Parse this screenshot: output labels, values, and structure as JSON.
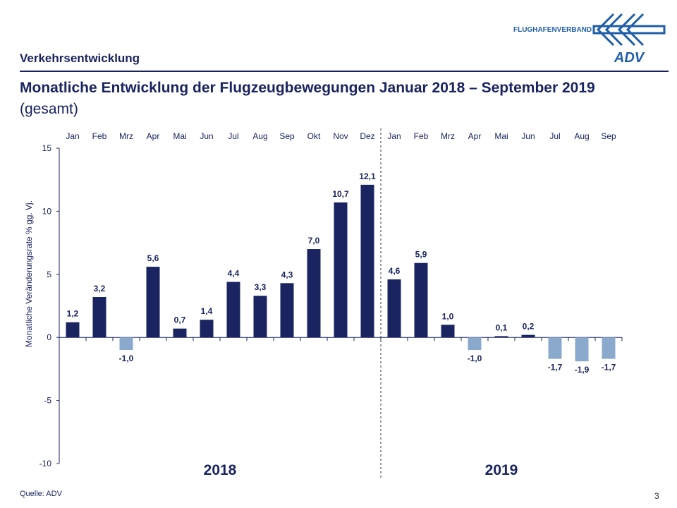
{
  "header": {
    "section": "Verkehrsentwicklung",
    "logo_text": "FLUGHAFENVERBAND",
    "logo_mark": "ADV"
  },
  "footer": {
    "source": "Quelle: ADV",
    "page": "3"
  },
  "colors": {
    "positive": "#1a2460",
    "negative": "#8aa9cc",
    "text": "#1a2460"
  },
  "chart_data": {
    "type": "bar",
    "title": "Monatliche Entwicklung der Flugzeugbewegungen Januar 2018 – September 2019",
    "subtitle": "(gesamt)",
    "ylabel": "Monatliche Veränderungsrate % gg. Vj.",
    "ylim": [
      -10,
      15
    ],
    "yticks": [
      15,
      10,
      5,
      0,
      -5,
      -10
    ],
    "categories": [
      "Jan",
      "Feb",
      "Mrz",
      "Apr",
      "Mai",
      "Jun",
      "Jul",
      "Aug",
      "Sep",
      "Okt",
      "Nov",
      "Dez",
      "Jan",
      "Feb",
      "Mrz",
      "Apr",
      "Mai",
      "Jun",
      "Jul",
      "Aug",
      "Sep"
    ],
    "values": [
      1.2,
      3.2,
      -1.0,
      5.6,
      0.7,
      1.4,
      4.4,
      3.3,
      4.3,
      7.0,
      10.7,
      12.1,
      4.6,
      5.9,
      1.0,
      -1.0,
      0.1,
      0.2,
      -1.7,
      -1.9,
      -1.7
    ],
    "data_labels": [
      "1,2",
      "3,2",
      "-1,0",
      "5,6",
      "0,7",
      "1,4",
      "4,4",
      "3,3",
      "4,3",
      "7,0",
      "10,7",
      "12,1",
      "4,6",
      "5,9",
      "1,0",
      "-1,0",
      "0,1",
      "0,2",
      "-1,7",
      "-1,9",
      "-1,7"
    ],
    "groups": [
      {
        "label": "2018",
        "months": 12
      },
      {
        "label": "2019",
        "months": 9
      }
    ],
    "grid": false
  }
}
